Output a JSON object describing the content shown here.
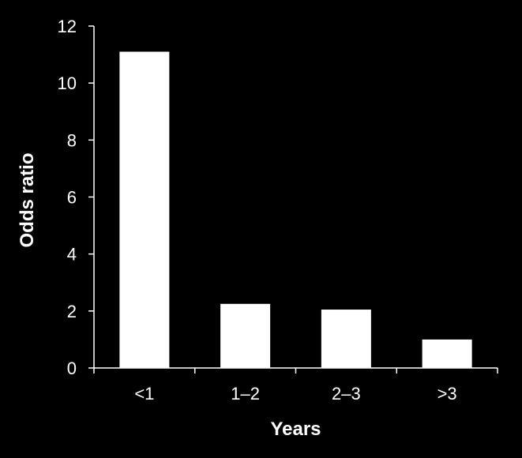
{
  "colors": {
    "background": "#000000",
    "bar": "#ffffff",
    "axis": "#ffffff",
    "text": "#ffffff"
  },
  "chart_data": {
    "type": "bar",
    "categories": [
      "<1",
      "1–2",
      "2–3",
      ">3"
    ],
    "values": [
      11.1,
      2.25,
      2.05,
      1.0
    ],
    "xlabel": "Years",
    "ylabel": "Odds ratio",
    "ylim": [
      0,
      12
    ],
    "yticks": [
      "0",
      "2",
      "4",
      "6",
      "8",
      "10",
      "12"
    ],
    "grid": false,
    "legend": "none"
  }
}
